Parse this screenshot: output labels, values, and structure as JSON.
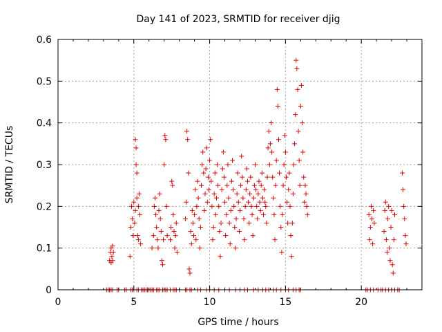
{
  "chart_data": {
    "type": "scatter",
    "title": "Day 141 of 2023, SRMTID for receiver djig",
    "xlabel": "GPS time / hours",
    "ylabel": "SRMTID / TECUs",
    "xlim": [
      0,
      24
    ],
    "ylim": [
      0,
      0.6
    ],
    "grid": true,
    "marker": "+",
    "color": "#e00000",
    "xticks": [
      {
        "value": 0,
        "label": "0"
      },
      {
        "value": 5,
        "label": "5"
      },
      {
        "value": 10,
        "label": "10"
      },
      {
        "value": 15,
        "label": "15"
      },
      {
        "value": 20,
        "label": "20"
      }
    ],
    "yticks": [
      {
        "value": 0,
        "label": "0"
      },
      {
        "value": 0.1,
        "label": "0.1"
      },
      {
        "value": 0.2,
        "label": "0.2"
      },
      {
        "value": 0.3,
        "label": "0.3"
      },
      {
        "value": 0.4,
        "label": "0.4"
      },
      {
        "value": 0.5,
        "label": "0.5"
      },
      {
        "value": 0.6,
        "label": "0.6"
      }
    ],
    "series": [
      {
        "name": "SRMTID",
        "points": [
          [
            3.4,
            0.07
          ],
          [
            3.45,
            0.09
          ],
          [
            3.5,
            0.1
          ],
          [
            3.5,
            0.065
          ],
          [
            3.55,
            0.08
          ],
          [
            3.6,
            0.105
          ],
          [
            3.6,
            0.07
          ],
          [
            3.65,
            0.09
          ],
          [
            4.75,
            0.08
          ],
          [
            4.8,
            0.15
          ],
          [
            4.85,
            0.2
          ],
          [
            4.9,
            0.17
          ],
          [
            4.95,
            0.13
          ],
          [
            5.0,
            0.21
          ],
          [
            5.05,
            0.16
          ],
          [
            5.1,
            0.19
          ],
          [
            5.1,
            0.36
          ],
          [
            5.15,
            0.34
          ],
          [
            5.15,
            0.3
          ],
          [
            5.2,
            0.28
          ],
          [
            5.2,
            0.22
          ],
          [
            5.25,
            0.13
          ],
          [
            5.3,
            0.12
          ],
          [
            5.3,
            0.2
          ],
          [
            5.35,
            0.23
          ],
          [
            5.4,
            0.18
          ],
          [
            5.45,
            0.11
          ],
          [
            6.2,
            0.1
          ],
          [
            6.3,
            0.13
          ],
          [
            6.35,
            0.2
          ],
          [
            6.4,
            0.22
          ],
          [
            6.45,
            0.18
          ],
          [
            6.5,
            0.15
          ],
          [
            6.55,
            0.12
          ],
          [
            6.6,
            0.1
          ],
          [
            6.65,
            0.19
          ],
          [
            6.7,
            0.23
          ],
          [
            6.75,
            0.17
          ],
          [
            6.8,
            0.14
          ],
          [
            6.85,
            0.07
          ],
          [
            6.9,
            0.06
          ],
          [
            6.95,
            0.12
          ],
          [
            7.0,
            0.3
          ],
          [
            7.05,
            0.37
          ],
          [
            7.1,
            0.36
          ],
          [
            7.15,
            0.2
          ],
          [
            7.2,
            0.13
          ],
          [
            7.4,
            0.12
          ],
          [
            7.45,
            0.15
          ],
          [
            7.5,
            0.26
          ],
          [
            7.55,
            0.25
          ],
          [
            7.6,
            0.18
          ],
          [
            7.65,
            0.14
          ],
          [
            7.7,
            0.1
          ],
          [
            7.75,
            0.13
          ],
          [
            7.8,
            0.16
          ],
          [
            7.85,
            0.09
          ],
          [
            8.4,
            0.17
          ],
          [
            8.45,
            0.21
          ],
          [
            8.5,
            0.38
          ],
          [
            8.55,
            0.36
          ],
          [
            8.6,
            0.28
          ],
          [
            8.65,
            0.05
          ],
          [
            8.7,
            0.04
          ],
          [
            8.75,
            0.14
          ],
          [
            8.8,
            0.11
          ],
          [
            8.85,
            0.19
          ],
          [
            8.9,
            0.16
          ],
          [
            8.95,
            0.13
          ],
          [
            9.0,
            0.18
          ],
          [
            9.05,
            0.24
          ],
          [
            9.1,
            0.12
          ],
          [
            9.15,
            0.2
          ],
          [
            9.2,
            0.26
          ],
          [
            9.25,
            0.22
          ],
          [
            9.3,
            0.17
          ],
          [
            9.35,
            0.1
          ],
          [
            9.4,
            0.15
          ],
          [
            9.45,
            0.25
          ],
          [
            9.5,
            0.3
          ],
          [
            9.55,
            0.33
          ],
          [
            9.6,
            0.28
          ],
          [
            9.65,
            0.19
          ],
          [
            9.7,
            0.23
          ],
          [
            9.75,
            0.29
          ],
          [
            9.8,
            0.34
          ],
          [
            9.85,
            0.21
          ],
          [
            9.9,
            0.27
          ],
          [
            9.95,
            0.24
          ],
          [
            10.0,
            0.31
          ],
          [
            10.05,
            0.36
          ],
          [
            10.1,
            0.26
          ],
          [
            10.15,
            0.2
          ],
          [
            10.2,
            0.12
          ],
          [
            10.25,
            0.15
          ],
          [
            10.3,
            0.23
          ],
          [
            10.35,
            0.28
          ],
          [
            10.4,
            0.18
          ],
          [
            10.45,
            0.22
          ],
          [
            10.5,
            0.3
          ],
          [
            10.55,
            0.25
          ],
          [
            10.6,
            0.2
          ],
          [
            10.65,
            0.14
          ],
          [
            10.7,
            0.08
          ],
          [
            10.75,
            0.16
          ],
          [
            10.8,
            0.24
          ],
          [
            10.85,
            0.29
          ],
          [
            10.9,
            0.33
          ],
          [
            10.95,
            0.27
          ],
          [
            11.0,
            0.21
          ],
          [
            11.05,
            0.13
          ],
          [
            11.1,
            0.18
          ],
          [
            11.15,
            0.25
          ],
          [
            11.2,
            0.3
          ],
          [
            11.25,
            0.22
          ],
          [
            11.3,
            0.16
          ],
          [
            11.35,
            0.11
          ],
          [
            11.4,
            0.19
          ],
          [
            11.45,
            0.26
          ],
          [
            11.5,
            0.31
          ],
          [
            11.55,
            0.24
          ],
          [
            11.6,
            0.2
          ],
          [
            11.65,
            0.15
          ],
          [
            11.7,
            0.1
          ],
          [
            11.75,
            0.17
          ],
          [
            11.8,
            0.23
          ],
          [
            11.85,
            0.28
          ],
          [
            11.9,
            0.21
          ],
          [
            11.95,
            0.14
          ],
          [
            12.0,
            0.19
          ],
          [
            12.05,
            0.25
          ],
          [
            12.1,
            0.32
          ],
          [
            12.15,
            0.27
          ],
          [
            12.2,
            0.22
          ],
          [
            12.25,
            0.17
          ],
          [
            12.3,
            0.12
          ],
          [
            12.35,
            0.2
          ],
          [
            12.4,
            0.24
          ],
          [
            12.45,
            0.29
          ],
          [
            12.5,
            0.26
          ],
          [
            12.55,
            0.21
          ],
          [
            12.6,
            0.16
          ],
          [
            12.65,
            0.23
          ],
          [
            12.7,
            0.27
          ],
          [
            12.75,
            0.2
          ],
          [
            12.8,
            0.18
          ],
          [
            12.85,
            0.13
          ],
          [
            12.9,
            0.22
          ],
          [
            12.95,
            0.25
          ],
          [
            13.0,
            0.3
          ],
          [
            13.05,
            0.24
          ],
          [
            13.1,
            0.2
          ],
          [
            13.15,
            0.17
          ],
          [
            13.2,
            0.23
          ],
          [
            13.25,
            0.26
          ],
          [
            13.3,
            0.21
          ],
          [
            13.35,
            0.19
          ],
          [
            13.4,
            0.25
          ],
          [
            13.45,
            0.28
          ],
          [
            13.5,
            0.22
          ],
          [
            13.55,
            0.18
          ],
          [
            13.6,
            0.24
          ],
          [
            13.65,
            0.21
          ],
          [
            13.7,
            0.2
          ],
          [
            13.75,
            0.16
          ],
          [
            13.8,
            0.27
          ],
          [
            13.85,
            0.34
          ],
          [
            13.9,
            0.38
          ],
          [
            13.95,
            0.3
          ],
          [
            14.0,
            0.35
          ],
          [
            14.05,
            0.4
          ],
          [
            14.1,
            0.33
          ],
          [
            14.15,
            0.27
          ],
          [
            14.2,
            0.22
          ],
          [
            14.25,
            0.18
          ],
          [
            14.3,
            0.12
          ],
          [
            14.35,
            0.25
          ],
          [
            14.4,
            0.31
          ],
          [
            14.45,
            0.48
          ],
          [
            14.5,
            0.44
          ],
          [
            14.55,
            0.36
          ],
          [
            14.6,
            0.28
          ],
          [
            14.65,
            0.2
          ],
          [
            14.7,
            0.15
          ],
          [
            14.75,
            0.09
          ],
          [
            14.8,
            0.18
          ],
          [
            14.85,
            0.25
          ],
          [
            14.9,
            0.3
          ],
          [
            14.95,
            0.37
          ],
          [
            15.0,
            0.33
          ],
          [
            15.05,
            0.27
          ],
          [
            15.1,
            0.21
          ],
          [
            15.15,
            0.16
          ],
          [
            15.2,
            0.24
          ],
          [
            15.25,
            0.28
          ],
          [
            15.3,
            0.2
          ],
          [
            15.35,
            0.13
          ],
          [
            15.4,
            0.08
          ],
          [
            15.45,
            0.16
          ],
          [
            15.5,
            0.23
          ],
          [
            15.55,
            0.3
          ],
          [
            15.6,
            0.35
          ],
          [
            15.65,
            0.42
          ],
          [
            15.7,
            0.55
          ],
          [
            15.75,
            0.53
          ],
          [
            15.8,
            0.48
          ],
          [
            15.85,
            0.38
          ],
          [
            15.9,
            0.31
          ],
          [
            15.95,
            0.25
          ],
          [
            16.0,
            0.44
          ],
          [
            16.05,
            0.49
          ],
          [
            16.1,
            0.4
          ],
          [
            16.15,
            0.33
          ],
          [
            16.2,
            0.27
          ],
          [
            16.25,
            0.21
          ],
          [
            16.3,
            0.25
          ],
          [
            16.35,
            0.23
          ],
          [
            16.4,
            0.2
          ],
          [
            16.45,
            0.18
          ],
          [
            20.5,
            0.18
          ],
          [
            20.55,
            0.12
          ],
          [
            20.6,
            0.15
          ],
          [
            20.65,
            0.2
          ],
          [
            20.7,
            0.17
          ],
          [
            20.75,
            0.11
          ],
          [
            20.8,
            0.19
          ],
          [
            20.85,
            0.16
          ],
          [
            21.5,
            0.14
          ],
          [
            21.55,
            0.19
          ],
          [
            21.6,
            0.21
          ],
          [
            21.65,
            0.12
          ],
          [
            21.7,
            0.09
          ],
          [
            21.75,
            0.17
          ],
          [
            21.8,
            0.2
          ],
          [
            21.85,
            0.1
          ],
          [
            21.9,
            0.07
          ],
          [
            21.95,
            0.15
          ],
          [
            22.0,
            0.19
          ],
          [
            22.05,
            0.06
          ],
          [
            22.1,
            0.04
          ],
          [
            22.15,
            0.12
          ],
          [
            22.2,
            0.18
          ],
          [
            22.7,
            0.28
          ],
          [
            22.75,
            0.24
          ],
          [
            22.8,
            0.2
          ],
          [
            22.85,
            0.17
          ],
          [
            22.9,
            0.13
          ],
          [
            22.95,
            0.11
          ]
        ],
        "zero_points": [
          3.2,
          3.3,
          3.4,
          3.5,
          3.6,
          3.9,
          4.0,
          4.4,
          4.5,
          4.8,
          4.9,
          5.0,
          5.2,
          5.3,
          5.5,
          5.6,
          5.7,
          5.8,
          5.9,
          6.0,
          6.1,
          6.2,
          6.3,
          6.5,
          6.6,
          6.7,
          6.9,
          7.0,
          7.1,
          7.2,
          7.4,
          7.6,
          7.7,
          7.8,
          8.0,
          8.4,
          8.5,
          8.7,
          8.8,
          9.2,
          9.4,
          9.8,
          10.0,
          10.3,
          10.6,
          11.0,
          11.3,
          11.7,
          12.0,
          12.3,
          12.5,
          12.9,
          13.2,
          13.5,
          13.7,
          13.9,
          14.2,
          14.4,
          14.7,
          15.0,
          15.2,
          15.5,
          15.7,
          15.9,
          16.0,
          20.3,
          20.4,
          20.6,
          20.8,
          21.1,
          21.3,
          21.4,
          21.6,
          21.8,
          22.0,
          22.2,
          22.4,
          22.5
        ]
      }
    ]
  }
}
